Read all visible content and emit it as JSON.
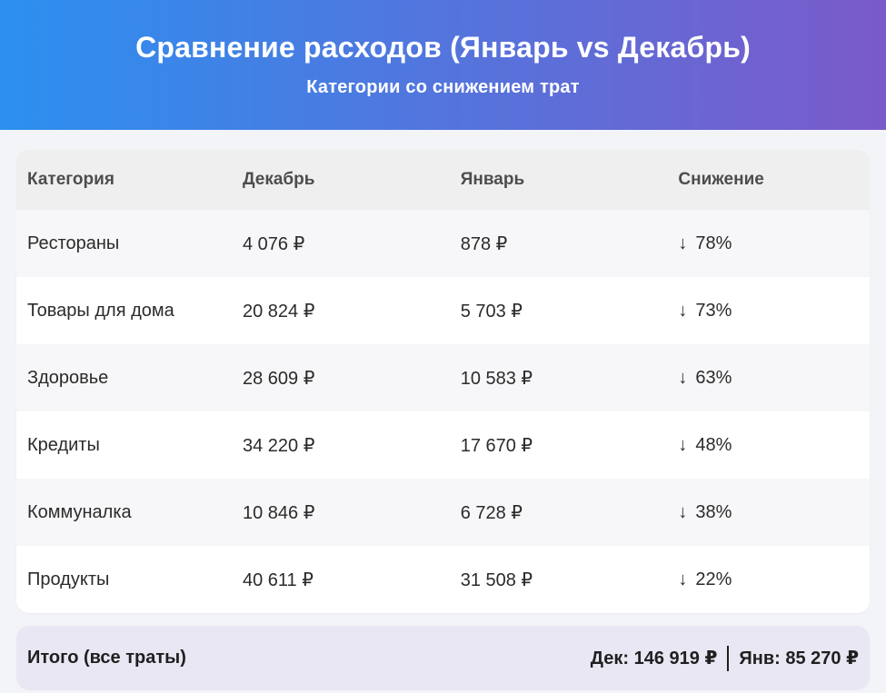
{
  "header": {
    "title": "Сравнение расходов (Январь vs Декабрь)",
    "subtitle": "Категории со снижением трат",
    "gradient_from": "#2B90F0",
    "gradient_to": "#7B5ACA"
  },
  "icons": {
    "down_arrow": "↓"
  },
  "table": {
    "columns": [
      "Категория",
      "Декабрь",
      "Январь",
      "Снижение"
    ],
    "rows": [
      {
        "category": "Рестораны",
        "december": "4 076 ₽",
        "january": "878 ₽",
        "reduction_percent": "78%"
      },
      {
        "category": "Товары для дома",
        "december": "20 824 ₽",
        "january": "5 703 ₽",
        "reduction_percent": "73%"
      },
      {
        "category": "Здоровье",
        "december": "28 609 ₽",
        "january": "10 583 ₽",
        "reduction_percent": "63%"
      },
      {
        "category": "Кредиты",
        "december": "34 220 ₽",
        "january": "17 670 ₽",
        "reduction_percent": "48%"
      },
      {
        "category": "Коммуналка",
        "december": "10 846 ₽",
        "january": "6 728 ₽",
        "reduction_percent": "38%"
      },
      {
        "category": "Продукты",
        "december": "40 611 ₽",
        "january": "31 508 ₽",
        "reduction_percent": "22%"
      }
    ]
  },
  "footer": {
    "label": "Итого (все траты)",
    "december_total": "Дек: 146 919 ₽",
    "january_total": "Янв: 85 270 ₽"
  },
  "chart_data": {
    "type": "table",
    "title": "Сравнение расходов (Январь vs Декабрь)",
    "subtitle": "Категории со снижением трат",
    "columns": [
      "Категория",
      "Декабрь",
      "Январь",
      "Снижение"
    ],
    "categories": [
      "Рестораны",
      "Товары для дома",
      "Здоровье",
      "Кредиты",
      "Коммуналка",
      "Продукты"
    ],
    "series": [
      {
        "name": "Декабрь (₽)",
        "values": [
          4076,
          20824,
          28609,
          34220,
          10846,
          40611
        ]
      },
      {
        "name": "Январь (₽)",
        "values": [
          878,
          5703,
          10583,
          17670,
          6728,
          31508
        ]
      },
      {
        "name": "Снижение (%)",
        "values": [
          78,
          73,
          63,
          48,
          38,
          22
        ]
      }
    ],
    "totals": {
      "december_rub": 146919,
      "january_rub": 85270
    }
  }
}
